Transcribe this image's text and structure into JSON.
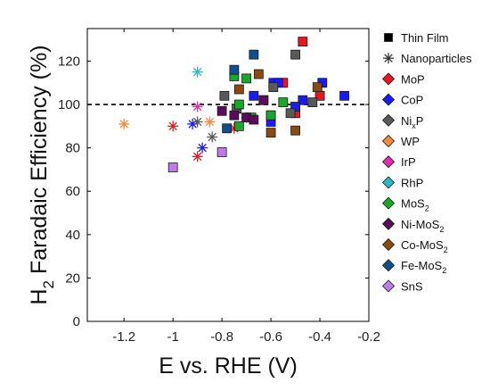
{
  "chart_data": {
    "type": "scatter",
    "xlabel": "E vs. RHE (V)",
    "ylabel": "H2 Faradaic Efficiency (%)",
    "xlim": [
      -1.35,
      -0.2
    ],
    "ylim": [
      0,
      135
    ],
    "xticks": [
      -1.2,
      -1,
      -0.8,
      -0.6,
      -0.4,
      -0.2
    ],
    "yticks": [
      0,
      20,
      40,
      60,
      80,
      100,
      120
    ],
    "xtick_labels": [
      "-1.2",
      "-1",
      "-0.8",
      "-0.6",
      "-0.4",
      "-0.2"
    ],
    "ytick_labels": [
      "0",
      "20",
      "40",
      "60",
      "80",
      "100",
      "120"
    ],
    "reference_line": {
      "y": 100,
      "style": "dashed"
    },
    "grid": false,
    "legend_position": "right",
    "legend": [
      {
        "label": "Thin Film",
        "marker": "square",
        "color": "#000000"
      },
      {
        "label": "Nanoparticles",
        "marker": "asterisk",
        "color": "#333333"
      },
      {
        "label": "MoP",
        "marker": "diamond",
        "color": "#e8161e"
      },
      {
        "label": "CoP",
        "marker": "diamond",
        "color": "#1a1aff"
      },
      {
        "label": "NixP",
        "label_main": "Ni",
        "label_sub": "x",
        "label_tail": "P",
        "marker": "diamond",
        "color": "#595959"
      },
      {
        "label": "WP",
        "marker": "diamond",
        "color": "#f58a3c"
      },
      {
        "label": "IrP",
        "marker": "diamond",
        "color": "#e82ab0"
      },
      {
        "label": "RhP",
        "marker": "diamond",
        "color": "#2ab7c2"
      },
      {
        "label": "MoS2",
        "label_main": "MoS",
        "label_sub": "2",
        "label_tail": "",
        "marker": "diamond",
        "color": "#17a82a"
      },
      {
        "label": "Ni-MoS2",
        "label_main": "Ni-MoS",
        "label_sub": "2",
        "label_tail": "",
        "marker": "diamond",
        "color": "#5c0a5c"
      },
      {
        "label": "Co-MoS2",
        "label_main": "Co-MoS",
        "label_sub": "2",
        "label_tail": "",
        "marker": "diamond",
        "color": "#8a4a10"
      },
      {
        "label": "Fe-MoS2",
        "label_main": "Fe-MoS",
        "label_sub": "2",
        "label_tail": "",
        "marker": "diamond",
        "color": "#0f4f8c"
      },
      {
        "label": "SnS",
        "marker": "diamond",
        "color": "#c07ae8"
      }
    ],
    "series": [
      {
        "name": "MoP",
        "color": "#e8161e",
        "thin_film": [
          [
            -0.47,
            129
          ],
          [
            -0.55,
            110
          ],
          [
            -0.5,
            96
          ],
          [
            -0.4,
            104
          ]
        ],
        "nanoparticles": [
          [
            -1.0,
            90
          ],
          [
            -0.9,
            76
          ],
          [
            -0.75,
            89
          ]
        ]
      },
      {
        "name": "CoP",
        "color": "#1a1aff",
        "thin_film": [
          [
            -0.67,
            104
          ],
          [
            -0.59,
            110
          ],
          [
            -0.57,
            110
          ],
          [
            -0.47,
            102
          ],
          [
            -0.39,
            110
          ],
          [
            -0.3,
            104
          ],
          [
            -0.5,
            99
          ],
          [
            -0.6,
            92
          ]
        ],
        "nanoparticles": [
          [
            -0.88,
            80
          ],
          [
            -0.92,
            91
          ]
        ]
      },
      {
        "name": "NixP",
        "color": "#595959",
        "thin_film": [
          [
            -0.79,
            104
          ],
          [
            -0.74,
            98
          ],
          [
            -0.63,
            102
          ],
          [
            -0.6,
            95
          ],
          [
            -0.59,
            108
          ],
          [
            -0.5,
            123
          ],
          [
            -0.43,
            101
          ],
          [
            -0.52,
            96
          ]
        ],
        "nanoparticles": [
          [
            -0.9,
            92
          ],
          [
            -0.84,
            85
          ],
          [
            -0.7,
            94
          ]
        ]
      },
      {
        "name": "WP",
        "color": "#f58a3c",
        "thin_film": [],
        "nanoparticles": [
          [
            -1.2,
            91
          ],
          [
            -0.85,
            92
          ]
        ]
      },
      {
        "name": "IrP",
        "color": "#e82ab0",
        "thin_film": [],
        "nanoparticles": [
          [
            -0.9,
            99
          ]
        ]
      },
      {
        "name": "RhP",
        "color": "#2ab7c2",
        "thin_film": [],
        "nanoparticles": [
          [
            -0.9,
            115
          ]
        ]
      },
      {
        "name": "MoS2",
        "color": "#17a82a",
        "thin_film": [
          [
            -0.75,
            113
          ],
          [
            -0.73,
            100
          ],
          [
            -0.7,
            112
          ],
          [
            -0.6,
            95
          ],
          [
            -0.55,
            101
          ],
          [
            -0.73,
            90
          ],
          [
            -0.68,
            94
          ]
        ],
        "nanoparticles": []
      },
      {
        "name": "Ni-MoS2",
        "color": "#5c0a5c",
        "thin_film": [
          [
            -0.75,
            95
          ],
          [
            -0.7,
            94
          ],
          [
            -0.67,
            93
          ],
          [
            -0.8,
            97
          ],
          [
            -0.63,
            102
          ]
        ],
        "nanoparticles": []
      },
      {
        "name": "Co-MoS2",
        "color": "#8a4a10",
        "thin_film": [
          [
            -0.73,
            107
          ],
          [
            -0.65,
            114
          ],
          [
            -0.6,
            87
          ],
          [
            -0.5,
            88
          ],
          [
            -0.41,
            108
          ]
        ],
        "nanoparticles": []
      },
      {
        "name": "Fe-MoS2",
        "color": "#0f4f8c",
        "thin_film": [
          [
            -0.75,
            116
          ],
          [
            -0.67,
            123
          ],
          [
            -0.78,
            89
          ]
        ],
        "nanoparticles": []
      },
      {
        "name": "SnS",
        "color": "#c07ae8",
        "thin_film": [
          [
            -1.0,
            71
          ],
          [
            -0.8,
            78
          ]
        ],
        "nanoparticles": []
      }
    ]
  }
}
